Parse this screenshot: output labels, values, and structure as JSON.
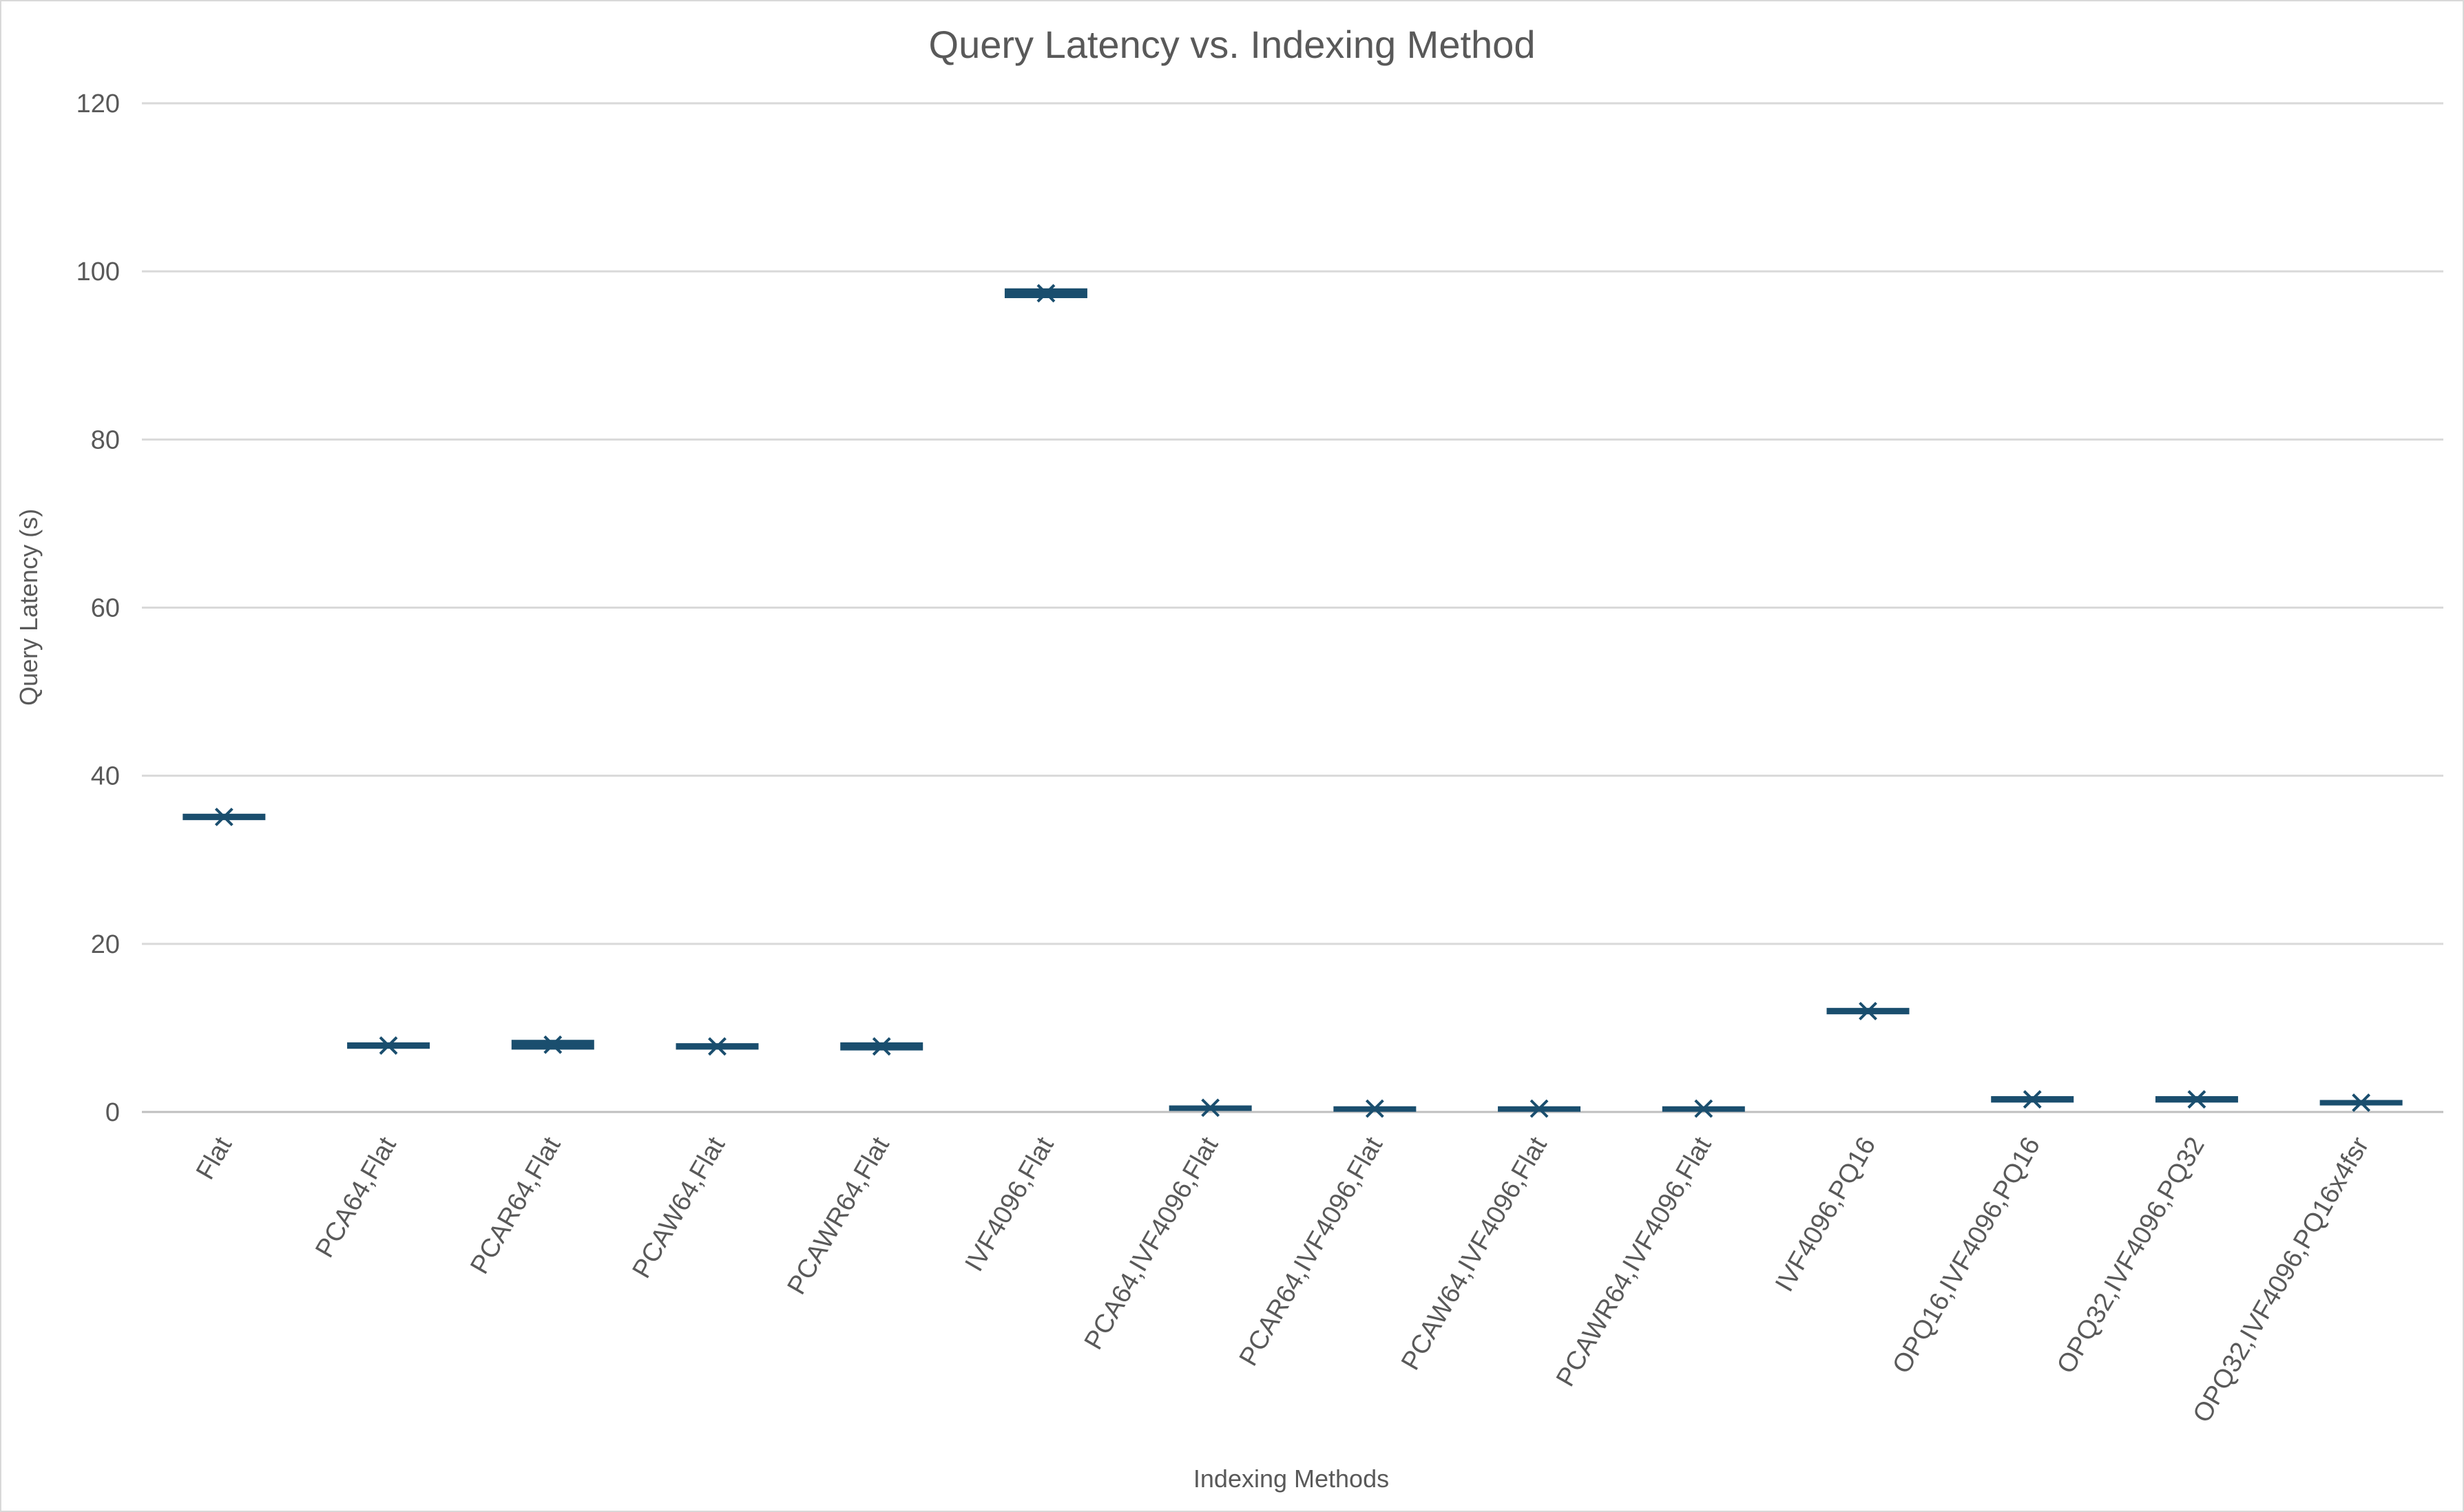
{
  "chart_data": {
    "type": "box",
    "title": "Query Latency vs. Indexing Method",
    "xlabel": "Indexing Methods",
    "ylabel": "Query Latency (s)",
    "ylim": [
      0,
      120
    ],
    "yticks": [
      0,
      20,
      40,
      60,
      80,
      100,
      120
    ],
    "grid": true,
    "legend": "none",
    "box_color": "#1a4e6e",
    "marker_color": "#1a4e6e",
    "categories": [
      "Flat",
      "PCA64,Flat",
      "PCAR64,Flat",
      "PCAW64,Flat",
      "PCAWR64,Flat",
      "IVF4096,Flat",
      "PCA64,IVF4096,Flat",
      "PCAR64,IVF4096,Flat",
      "PCAW64,IVF4096,Flat",
      "PCAWR64,IVF4096,Flat",
      "IVF4096,PQ16",
      "OPQ16,IVF4096,PQ16",
      "OPQ32,IVF4096,PQ32",
      "OPQ32,IVF4096,PQ16x4fsr"
    ],
    "boxes": [
      {
        "q1": 34.8,
        "q3": 35.4,
        "mean": 35.1
      },
      {
        "q1": 7.6,
        "q3": 8.2,
        "mean": 7.9
      },
      {
        "q1": 7.5,
        "q3": 8.5,
        "mean": 8.0
      },
      {
        "q1": 7.5,
        "q3": 8.1,
        "mean": 7.8
      },
      {
        "q1": 7.4,
        "q3": 8.2,
        "mean": 7.8
      },
      {
        "q1": 96.9,
        "q3": 97.9,
        "mean": 97.4
      },
      {
        "q1": 0.3,
        "q3": 0.6,
        "mean": 0.5
      },
      {
        "q1": 0.2,
        "q3": 0.5,
        "mean": 0.4
      },
      {
        "q1": 0.2,
        "q3": 0.5,
        "mean": 0.4
      },
      {
        "q1": 0.2,
        "q3": 0.5,
        "mean": 0.4
      },
      {
        "q1": 11.7,
        "q3": 12.3,
        "mean": 12.0
      },
      {
        "q1": 1.2,
        "q3": 1.8,
        "mean": 1.5
      },
      {
        "q1": 1.2,
        "q3": 1.8,
        "mean": 1.5
      },
      {
        "q1": 0.9,
        "q3": 1.3,
        "mean": 1.1
      }
    ]
  }
}
